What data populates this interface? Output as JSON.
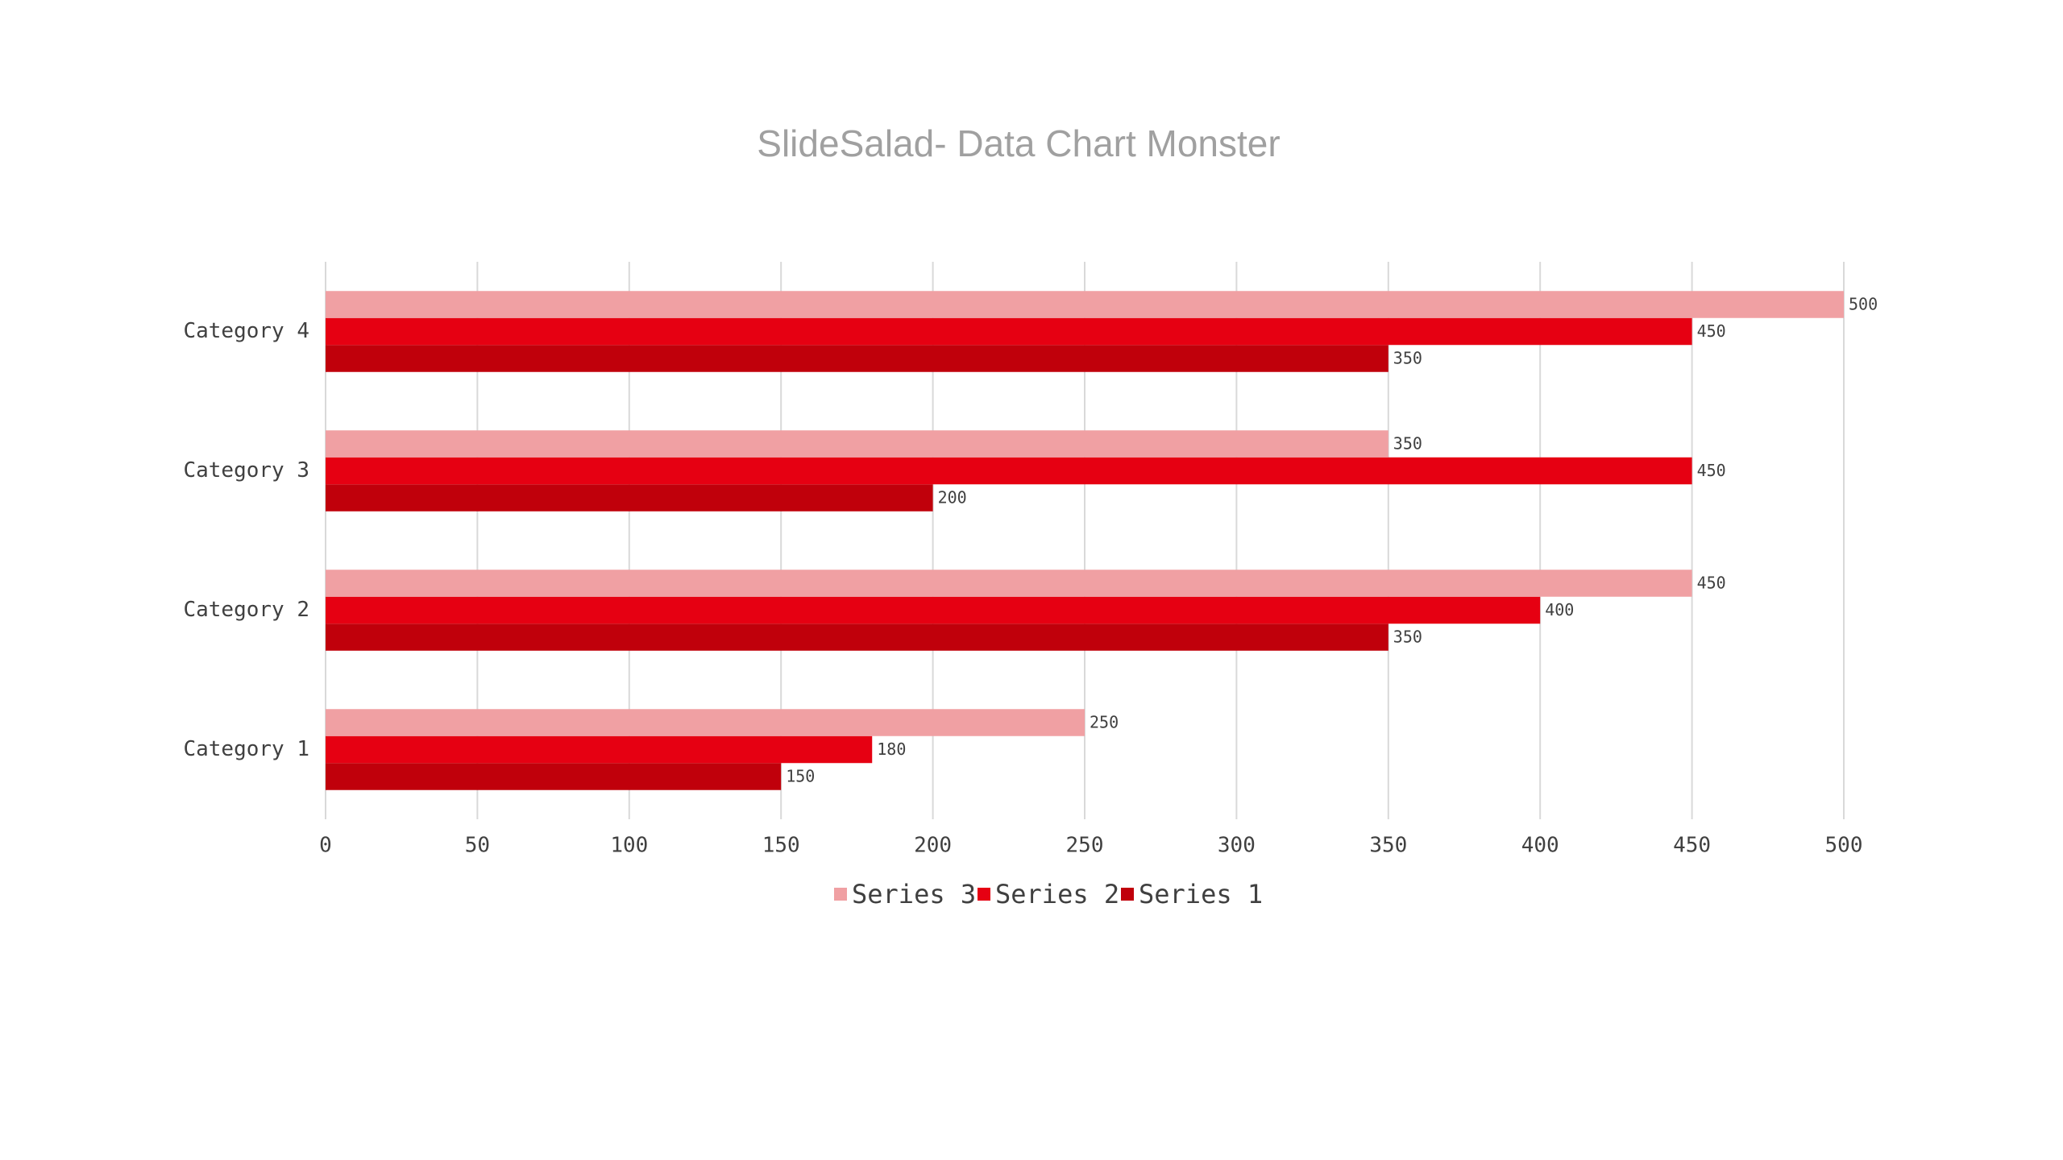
{
  "chart_data": {
    "type": "bar",
    "orientation": "horizontal",
    "title": "SlideSalad- Data Chart Monster",
    "categories": [
      "Category 1",
      "Category 2",
      "Category 3",
      "Category 4"
    ],
    "series": [
      {
        "name": "Series 1",
        "color": "#c0000b",
        "values": [
          150,
          350,
          200,
          350
        ]
      },
      {
        "name": "Series 2",
        "color": "#e60012",
        "values": [
          180,
          400,
          450,
          450
        ]
      },
      {
        "name": "Series 3",
        "color": "#f0a0a3",
        "values": [
          250,
          450,
          350,
          500
        ]
      }
    ],
    "xlim": [
      0,
      500
    ],
    "xticks": [
      0,
      50,
      100,
      150,
      200,
      250,
      300,
      350,
      400,
      450,
      500
    ],
    "grid": true,
    "legend": "bottom"
  }
}
